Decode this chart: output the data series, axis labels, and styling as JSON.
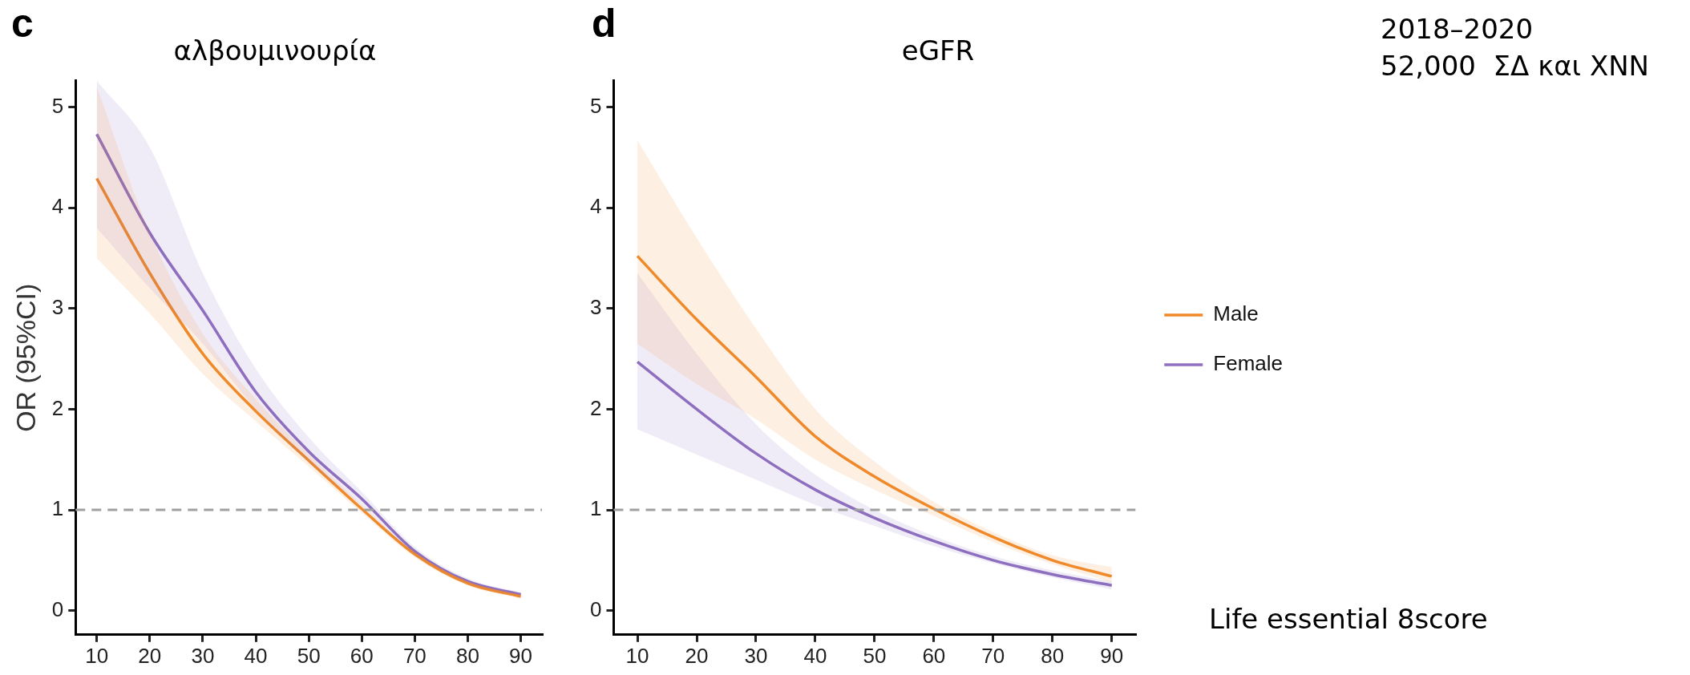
{
  "chart_data": [
    {
      "type": "line",
      "title": "αλβουμινουρία",
      "ylabel": "OR (95%CI)",
      "x": [
        10,
        20,
        30,
        40,
        50,
        60,
        70,
        80,
        90
      ],
      "xlim": [
        6,
        94
      ],
      "xticks": [
        10,
        20,
        30,
        40,
        50,
        60,
        70,
        80,
        90
      ],
      "ylim": [
        -0.24,
        5.26
      ],
      "yticks": [
        0,
        1,
        2,
        3,
        4,
        5
      ],
      "grid": false,
      "legend": false,
      "series": [
        {
          "color": "#f0892a",
          "values": [
            4.29,
            3.35,
            2.55,
            1.98,
            1.49,
            1.01,
            0.56,
            0.27,
            0.14
          ],
          "lower": [
            3.5,
            2.95,
            2.35,
            1.88,
            1.43,
            0.97,
            0.53,
            0.25,
            0.12
          ],
          "upper": [
            5.2,
            3.75,
            2.75,
            2.1,
            1.55,
            1.05,
            0.58,
            0.29,
            0.16
          ]
        },
        {
          "color": "#8e6fbf",
          "values": [
            4.73,
            3.75,
            2.98,
            2.17,
            1.58,
            1.11,
            0.59,
            0.29,
            0.16
          ],
          "lower": [
            3.8,
            3.2,
            2.65,
            2.0,
            1.47,
            1.04,
            0.56,
            0.27,
            0.14
          ],
          "upper": [
            5.26,
            4.6,
            3.35,
            2.4,
            1.72,
            1.18,
            0.63,
            0.32,
            0.18
          ]
        }
      ],
      "ref_lines": [
        {
          "axis": "y",
          "value": 1,
          "color": "#a0a0a0",
          "line_style": "dashed"
        }
      ],
      "annotations": [
        "c"
      ]
    },
    {
      "type": "line",
      "title": "eGFR",
      "x": [
        10,
        20,
        30,
        40,
        50,
        60,
        70,
        80,
        90
      ],
      "xlim": [
        6,
        94
      ],
      "xticks": [
        10,
        20,
        30,
        40,
        50,
        60,
        70,
        80,
        90
      ],
      "ylim": [
        -0.24,
        5.26
      ],
      "yticks": [
        0,
        1,
        2,
        3,
        4,
        5
      ],
      "grid": false,
      "legend": "right",
      "series": [
        {
          "name": "Male",
          "color": "#f0892a",
          "values": [
            3.52,
            2.89,
            2.32,
            1.73,
            1.33,
            1.01,
            0.73,
            0.5,
            0.34
          ],
          "lower": [
            2.65,
            2.25,
            1.9,
            1.5,
            1.2,
            0.94,
            0.68,
            0.46,
            0.28
          ],
          "upper": [
            4.67,
            3.7,
            2.8,
            2.0,
            1.48,
            1.08,
            0.78,
            0.55,
            0.43
          ]
        },
        {
          "name": "Female",
          "color": "#8e6fbf",
          "values": [
            2.47,
            2.0,
            1.56,
            1.2,
            0.92,
            0.69,
            0.5,
            0.36,
            0.25
          ],
          "lower": [
            1.8,
            1.55,
            1.3,
            1.05,
            0.84,
            0.64,
            0.47,
            0.33,
            0.21
          ],
          "upper": [
            3.35,
            2.55,
            1.85,
            1.35,
            1.0,
            0.74,
            0.54,
            0.4,
            0.29
          ]
        }
      ],
      "ref_lines": [
        {
          "axis": "y",
          "value": 1,
          "color": "#a0a0a0",
          "line_style": "dashed"
        }
      ],
      "annotations": [
        "d",
        "2018–2020",
        "52,000  ΣΔ και ΧΝΝ",
        "Life essential 8score"
      ]
    }
  ]
}
